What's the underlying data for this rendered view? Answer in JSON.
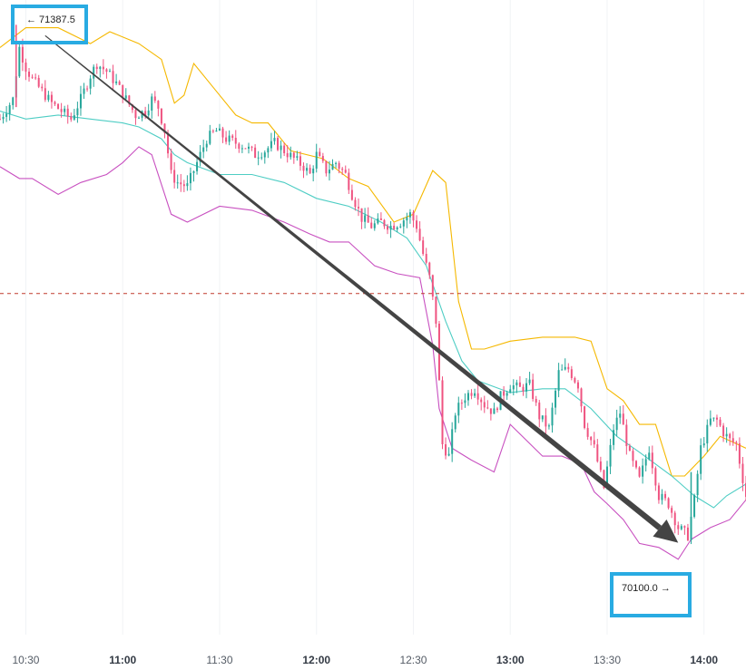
{
  "chart_data": {
    "type": "candlestick",
    "x_axis": {
      "tick_labels": [
        {
          "label": "10:30",
          "minutes": 630,
          "bold": false
        },
        {
          "label": "11:00",
          "minutes": 660,
          "bold": true
        },
        {
          "label": "11:30",
          "minutes": 690,
          "bold": false
        },
        {
          "label": "12:00",
          "minutes": 720,
          "bold": true
        },
        {
          "label": "12:30",
          "minutes": 750,
          "bold": false
        },
        {
          "label": "13:00",
          "minutes": 780,
          "bold": true
        },
        {
          "label": "13:30",
          "minutes": 810,
          "bold": false
        },
        {
          "label": "14:00",
          "minutes": 840,
          "bold": true
        }
      ],
      "range_minutes": [
        622,
        853
      ]
    },
    "y_axis": {
      "range": [
        69850,
        71450
      ]
    },
    "reference_line": {
      "value": 70710,
      "style": "dashed",
      "color": "#c0392b"
    },
    "annotations": {
      "high": {
        "text": "← 71387.5",
        "value": 71387.5
      },
      "low": {
        "text": "70100.0 →",
        "value": 70100.0
      }
    },
    "trend_arrow": {
      "from_value": 71387.5,
      "to_value": 70100.0,
      "color": "#444444"
    },
    "colors": {
      "up": "#26a69a",
      "down": "#ef5380",
      "upper_band": "#f5b800",
      "middle_band": "#4ecdc4",
      "lower_band": "#c850c0",
      "callout_border": "#29abe2"
    },
    "series": [
      {
        "name": "",
        "role": "upper_band",
        "color": "#f5b800",
        "points": [
          [
            622,
            71330
          ],
          [
            630,
            71380
          ],
          [
            640,
            71380
          ],
          [
            650,
            71340
          ],
          [
            656,
            71370
          ],
          [
            665,
            71340
          ],
          [
            672,
            71300
          ],
          [
            676,
            71190
          ],
          [
            679,
            71210
          ],
          [
            682,
            71290
          ],
          [
            688,
            71230
          ],
          [
            695,
            71160
          ],
          [
            700,
            71140
          ],
          [
            705,
            71140
          ],
          [
            712,
            71070
          ],
          [
            722,
            71050
          ],
          [
            730,
            71000
          ],
          [
            736,
            70980
          ],
          [
            744,
            70890
          ],
          [
            750,
            70910
          ],
          [
            756,
            71020
          ],
          [
            760,
            70990
          ],
          [
            764,
            70690
          ],
          [
            768,
            70570
          ],
          [
            772,
            70570
          ],
          [
            780,
            70590
          ],
          [
            790,
            70600
          ],
          [
            800,
            70600
          ],
          [
            805,
            70590
          ],
          [
            810,
            70470
          ],
          [
            815,
            70440
          ],
          [
            820,
            70380
          ],
          [
            825,
            70380
          ],
          [
            830,
            70250
          ],
          [
            834,
            70250
          ],
          [
            840,
            70300
          ],
          [
            845,
            70350
          ],
          [
            853,
            70320
          ]
        ]
      },
      {
        "name": "",
        "role": "middle_band",
        "color": "#4ecdc4",
        "points": [
          [
            622,
            71170
          ],
          [
            630,
            71150
          ],
          [
            640,
            71160
          ],
          [
            650,
            71150
          ],
          [
            660,
            71140
          ],
          [
            665,
            71130
          ],
          [
            672,
            71100
          ],
          [
            676,
            71060
          ],
          [
            680,
            71040
          ],
          [
            690,
            71010
          ],
          [
            700,
            71010
          ],
          [
            710,
            70990
          ],
          [
            720,
            70950
          ],
          [
            730,
            70930
          ],
          [
            740,
            70890
          ],
          [
            748,
            70850
          ],
          [
            754,
            70780
          ],
          [
            760,
            70640
          ],
          [
            765,
            70540
          ],
          [
            770,
            70490
          ],
          [
            780,
            70460
          ],
          [
            790,
            70470
          ],
          [
            797,
            70470
          ],
          [
            805,
            70420
          ],
          [
            813,
            70350
          ],
          [
            820,
            70310
          ],
          [
            830,
            70250
          ],
          [
            837,
            70200
          ],
          [
            843,
            70170
          ],
          [
            847,
            70200
          ],
          [
            853,
            70230
          ]
        ]
      },
      {
        "name": "",
        "role": "lower_band",
        "color": "#c850c0",
        "points": [
          [
            622,
            71030
          ],
          [
            628,
            71000
          ],
          [
            632,
            71000
          ],
          [
            640,
            70960
          ],
          [
            647,
            70990
          ],
          [
            655,
            71010
          ],
          [
            660,
            71040
          ],
          [
            665,
            71080
          ],
          [
            669,
            71060
          ],
          [
            675,
            70910
          ],
          [
            680,
            70890
          ],
          [
            690,
            70930
          ],
          [
            700,
            70920
          ],
          [
            710,
            70890
          ],
          [
            718,
            70860
          ],
          [
            724,
            70840
          ],
          [
            730,
            70840
          ],
          [
            738,
            70780
          ],
          [
            745,
            70760
          ],
          [
            752,
            70750
          ],
          [
            756,
            70580
          ],
          [
            758,
            70420
          ],
          [
            762,
            70320
          ],
          [
            768,
            70290
          ],
          [
            775,
            70260
          ],
          [
            780,
            70380
          ],
          [
            785,
            70340
          ],
          [
            790,
            70300
          ],
          [
            796,
            70300
          ],
          [
            802,
            70280
          ],
          [
            806,
            70210
          ],
          [
            810,
            70180
          ],
          [
            815,
            70140
          ],
          [
            820,
            70080
          ],
          [
            826,
            70070
          ],
          [
            832,
            70040
          ],
          [
            836,
            70090
          ],
          [
            842,
            70120
          ],
          [
            848,
            70140
          ],
          [
            853,
            70190
          ]
        ]
      },
      {
        "name": "",
        "role": "close_path",
        "points": [
          [
            622,
            71150
          ],
          [
            626,
            71200
          ],
          [
            628,
            71330
          ],
          [
            630,
            71280
          ],
          [
            632,
            71250
          ],
          [
            635,
            71220
          ],
          [
            638,
            71190
          ],
          [
            641,
            71170
          ],
          [
            644,
            71150
          ],
          [
            647,
            71200
          ],
          [
            650,
            71260
          ],
          [
            652,
            71290
          ],
          [
            655,
            71270
          ],
          [
            658,
            71240
          ],
          [
            661,
            71200
          ],
          [
            664,
            71160
          ],
          [
            667,
            71170
          ],
          [
            669,
            71200
          ],
          [
            671,
            71180
          ],
          [
            673,
            71120
          ],
          [
            675,
            71010
          ],
          [
            677,
            70990
          ],
          [
            680,
            70980
          ],
          [
            683,
            71040
          ],
          [
            686,
            71100
          ],
          [
            689,
            71120
          ],
          [
            692,
            71100
          ],
          [
            695,
            71090
          ],
          [
            698,
            71080
          ],
          [
            701,
            71060
          ],
          [
            704,
            71070
          ],
          [
            707,
            71090
          ],
          [
            710,
            71070
          ],
          [
            713,
            71050
          ],
          [
            716,
            71030
          ],
          [
            718,
            71010
          ],
          [
            720,
            71060
          ],
          [
            723,
            71020
          ],
          [
            726,
            71040
          ],
          [
            729,
            71010
          ],
          [
            731,
            70960
          ],
          [
            734,
            70900
          ],
          [
            737,
            70880
          ],
          [
            740,
            70890
          ],
          [
            743,
            70880
          ],
          [
            746,
            70890
          ],
          [
            749,
            70910
          ],
          [
            751,
            70880
          ],
          [
            753,
            70810
          ],
          [
            755,
            70750
          ],
          [
            757,
            70640
          ],
          [
            759,
            70330
          ],
          [
            761,
            70300
          ],
          [
            763,
            70410
          ],
          [
            766,
            70450
          ],
          [
            769,
            70470
          ],
          [
            772,
            70430
          ],
          [
            775,
            70410
          ],
          [
            777,
            70450
          ],
          [
            780,
            70480
          ],
          [
            783,
            70470
          ],
          [
            786,
            70480
          ],
          [
            789,
            70400
          ],
          [
            792,
            70370
          ],
          [
            795,
            70510
          ],
          [
            798,
            70520
          ],
          [
            801,
            70480
          ],
          [
            803,
            70380
          ],
          [
            806,
            70320
          ],
          [
            809,
            70220
          ],
          [
            812,
            70370
          ],
          [
            814,
            70410
          ],
          [
            817,
            70300
          ],
          [
            820,
            70240
          ],
          [
            823,
            70320
          ],
          [
            826,
            70200
          ],
          [
            829,
            70180
          ],
          [
            832,
            70120
          ],
          [
            835,
            70100
          ],
          [
            837,
            70190
          ],
          [
            839,
            70320
          ],
          [
            842,
            70390
          ],
          [
            844,
            70390
          ],
          [
            846,
            70360
          ],
          [
            848,
            70340
          ],
          [
            850,
            70330
          ],
          [
            853,
            70200
          ]
        ]
      }
    ]
  }
}
